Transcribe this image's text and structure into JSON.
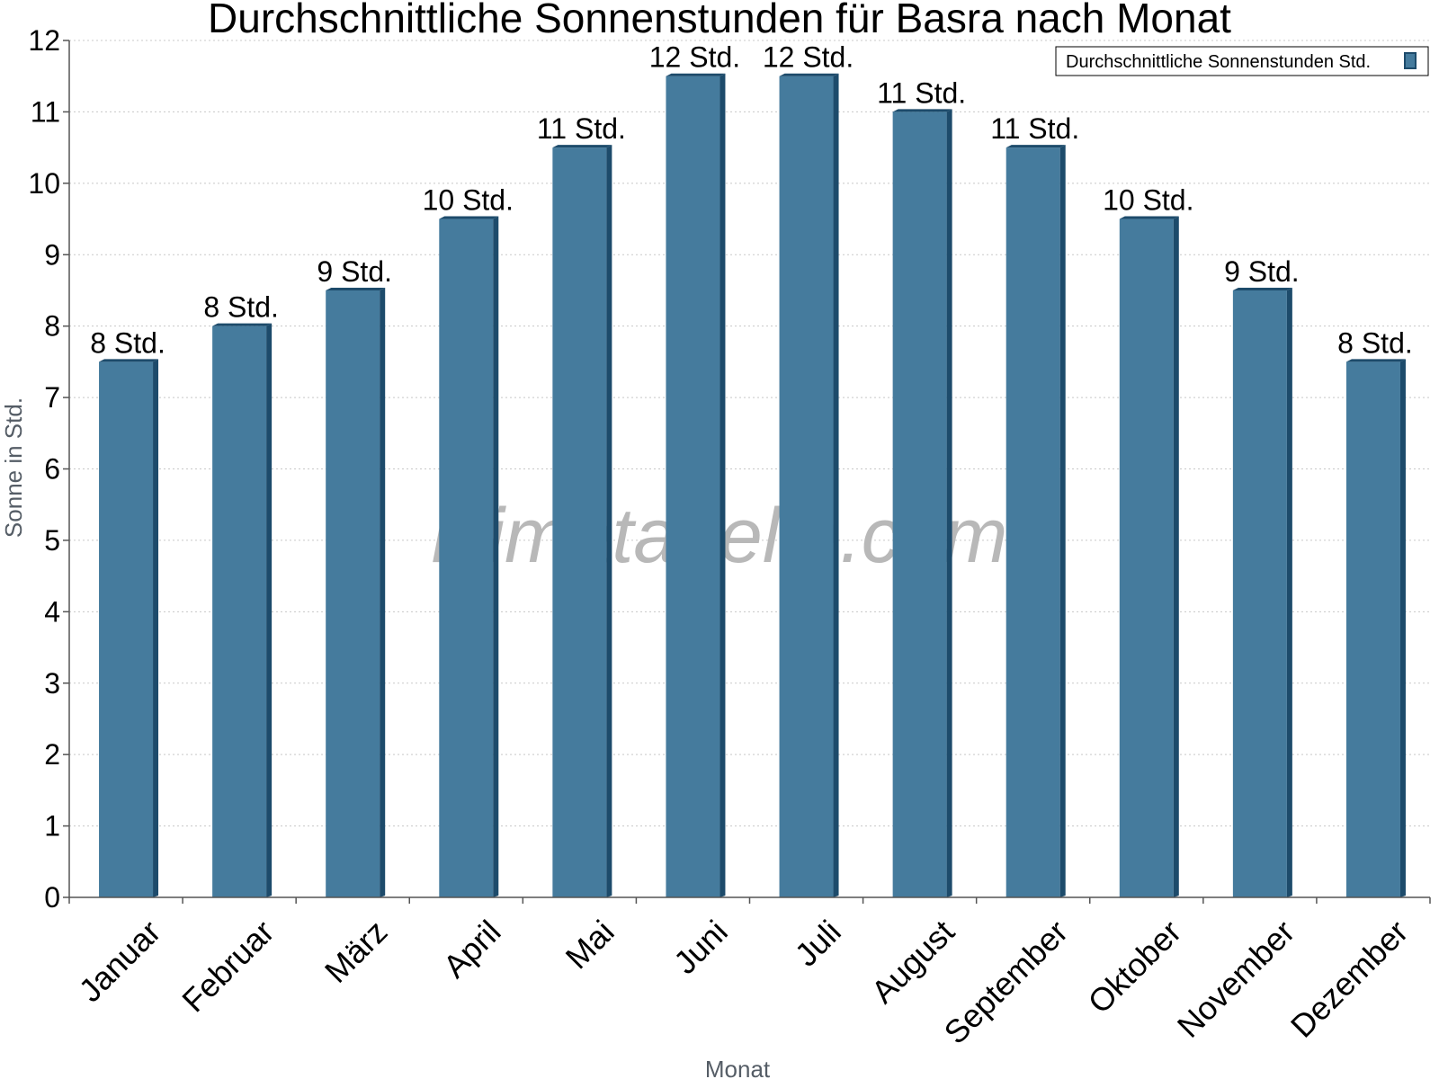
{
  "chart_data": {
    "type": "bar",
    "title": "Durchschnittliche Sonnenstunden für Basra nach Monat",
    "xlabel": "Monat",
    "ylabel": "Sonne in Std.",
    "ylim": [
      0,
      12
    ],
    "yticks": [
      0,
      1,
      2,
      3,
      4,
      5,
      6,
      7,
      8,
      9,
      10,
      11,
      12
    ],
    "grid": true,
    "legend_position": "top-right",
    "categories": [
      "Januar",
      "Februar",
      "März",
      "April",
      "Mai",
      "Juni",
      "Juli",
      "August",
      "September",
      "Oktober",
      "November",
      "Dezember"
    ],
    "series": [
      {
        "name": "Durchschnittliche Sonnenstunden Std.",
        "values": [
          7.5,
          8,
          8.5,
          9.5,
          10.5,
          11.5,
          11.5,
          11,
          10.5,
          9.5,
          8.5,
          7.5
        ],
        "labels": [
          "8 Std.",
          "8 Std.",
          "9 Std.",
          "10 Std.",
          "11 Std.",
          "12 Std.",
          "12 Std.",
          "11 Std.",
          "11 Std.",
          "10 Std.",
          "9 Std.",
          "8 Std."
        ]
      }
    ],
    "colors": {
      "bar_face": "#457b9d",
      "bar_side": "#1d4b6b",
      "bar_top": "#1d4b6b",
      "grid": "#c8c8c8",
      "axis": "#555555"
    },
    "watermark": "klimatabelle.com"
  }
}
